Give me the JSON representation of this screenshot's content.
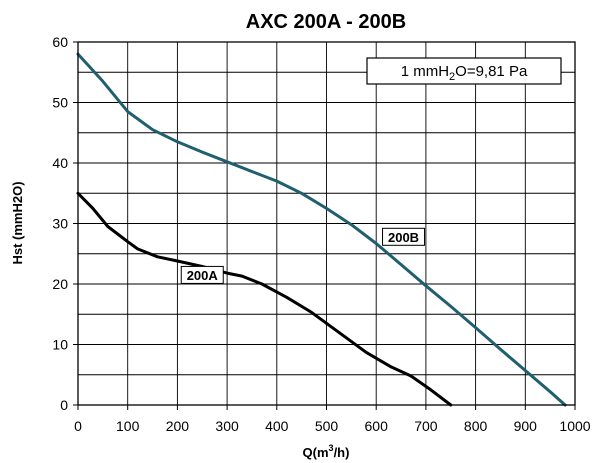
{
  "chart_data": {
    "type": "line",
    "title": "AXC 200A - 200B",
    "xlabel": {
      "prefix": "Q(m",
      "sup": "3",
      "suffix": "/h)"
    },
    "ylabel": "Hst (mmH2O)",
    "xlim": [
      0,
      1000
    ],
    "ylim": [
      0,
      60
    ],
    "xticks": [
      0,
      100,
      200,
      300,
      400,
      500,
      600,
      700,
      800,
      900,
      1000
    ],
    "yticks": [
      0,
      10,
      20,
      30,
      40,
      50,
      60
    ],
    "grid": true,
    "note": {
      "prefix": "1 mmH",
      "sub": "2",
      "suffix": "O=9,81 Pa"
    },
    "series": [
      {
        "name": "200A",
        "color": "#000000",
        "points": [
          [
            0,
            35.0
          ],
          [
            30,
            32.5
          ],
          [
            60,
            29.5
          ],
          [
            100,
            27.0
          ],
          [
            120,
            25.8
          ],
          [
            160,
            24.5
          ],
          [
            200,
            23.8
          ],
          [
            250,
            22.9
          ],
          [
            300,
            21.8
          ],
          [
            330,
            21.3
          ],
          [
            370,
            20.0
          ],
          [
            420,
            17.8
          ],
          [
            470,
            15.3
          ],
          [
            520,
            12.3
          ],
          [
            580,
            8.7
          ],
          [
            630,
            6.3
          ],
          [
            670,
            4.8
          ],
          [
            710,
            2.5
          ],
          [
            750,
            0
          ]
        ]
      },
      {
        "name": "200B",
        "color": "#1f5f6e",
        "points": [
          [
            0,
            58.0
          ],
          [
            50,
            53.5
          ],
          [
            100,
            48.5
          ],
          [
            150,
            45.5
          ],
          [
            200,
            43.5
          ],
          [
            250,
            41.8
          ],
          [
            300,
            40.2
          ],
          [
            350,
            38.6
          ],
          [
            400,
            37.0
          ],
          [
            450,
            35.0
          ],
          [
            500,
            32.5
          ],
          [
            550,
            29.8
          ],
          [
            600,
            26.7
          ],
          [
            650,
            23.2
          ],
          [
            700,
            19.7
          ],
          [
            750,
            16.3
          ],
          [
            800,
            12.8
          ],
          [
            850,
            9.2
          ],
          [
            900,
            5.7
          ],
          [
            950,
            2.2
          ],
          [
            980,
            0
          ]
        ]
      }
    ],
    "series_labels": [
      {
        "text": "200A",
        "x": 250,
        "y": 21.5
      },
      {
        "text": "200B",
        "x": 655,
        "y": 27.8
      }
    ]
  }
}
